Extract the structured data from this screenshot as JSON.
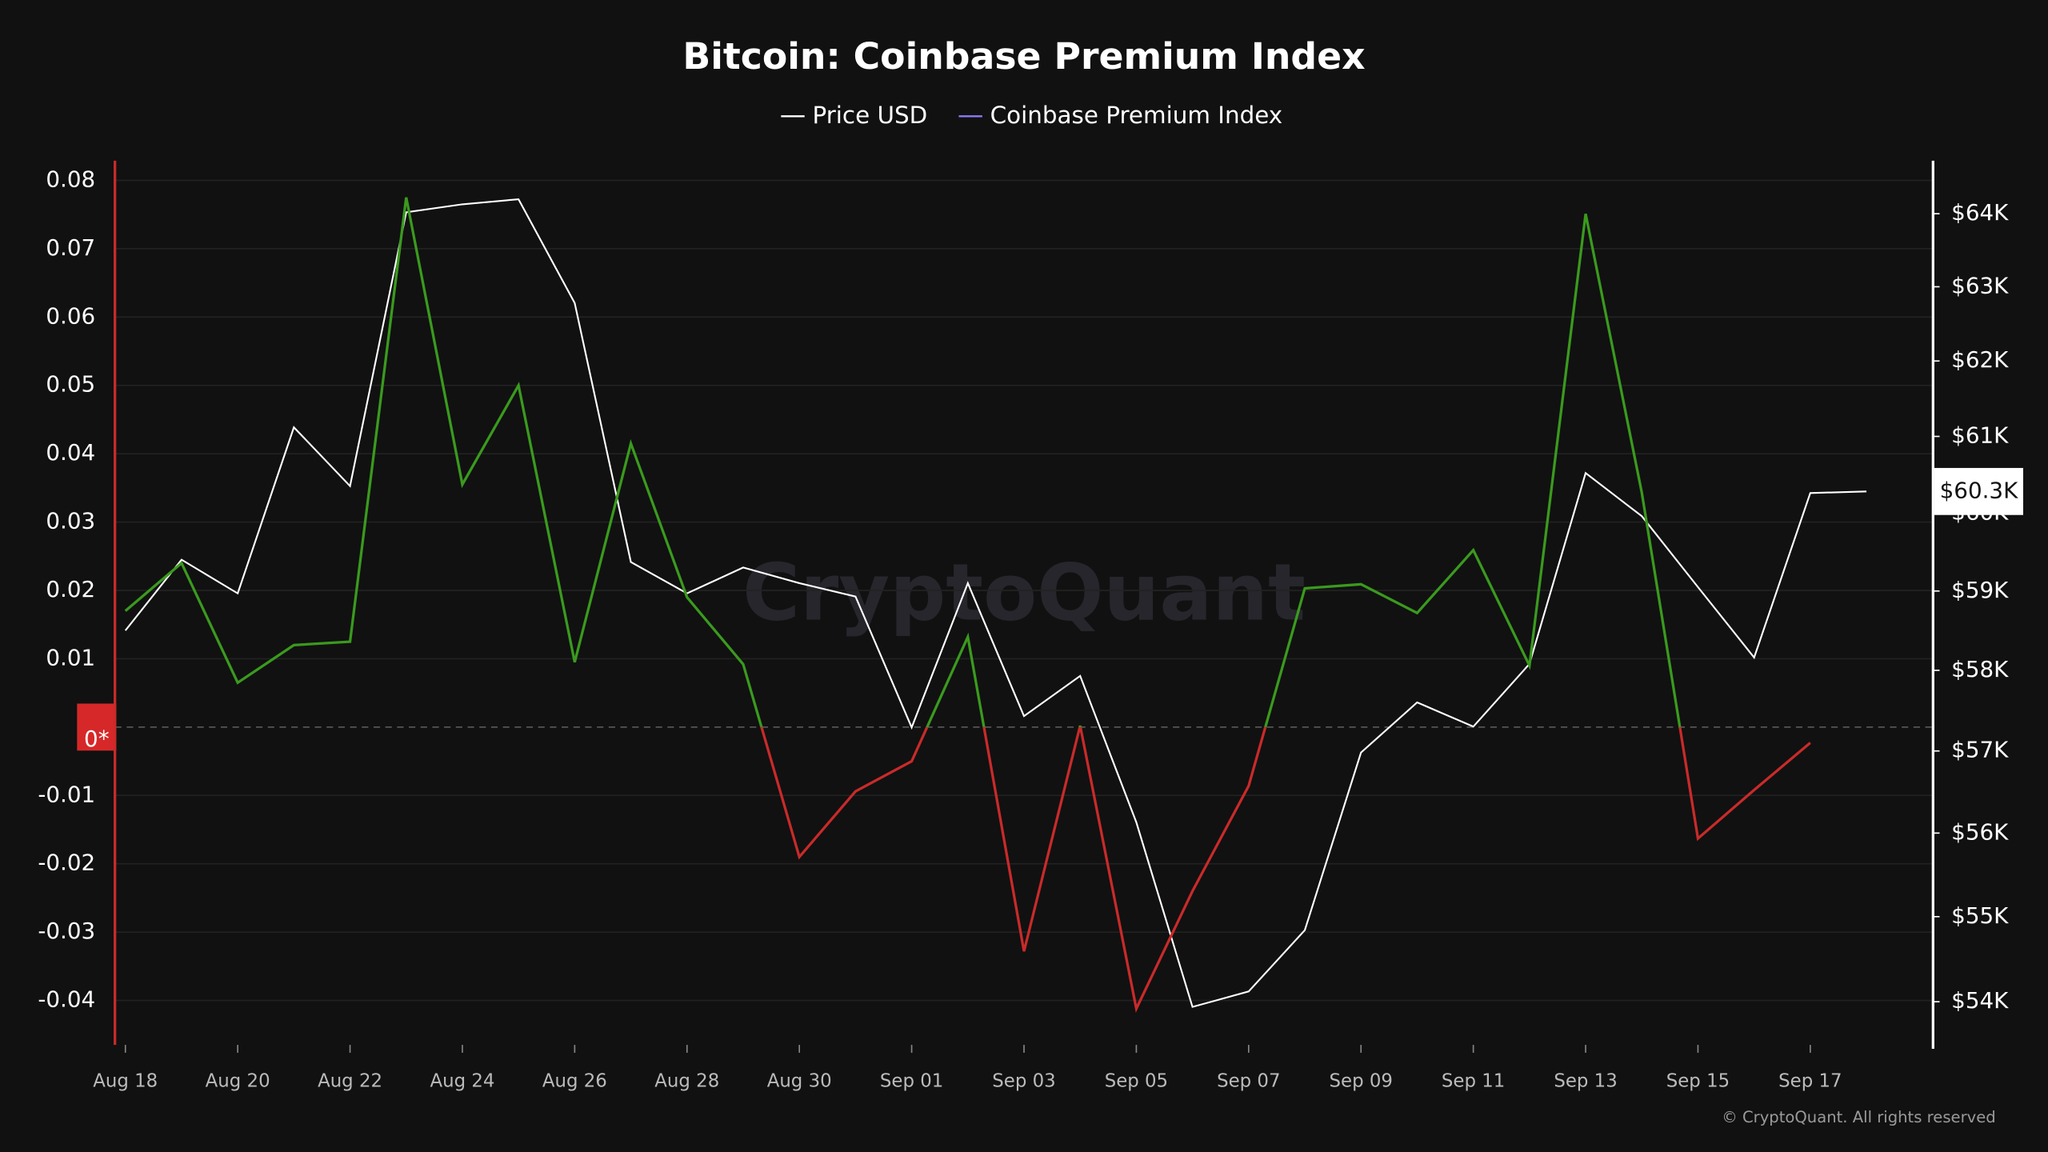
{
  "chart_data": {
    "type": "line",
    "title": "Bitcoin: Coinbase Premium Index",
    "watermark": "CryptoQuant",
    "copyright": "© CryptoQuant. All rights reserved",
    "categories": [
      "Aug 18",
      null,
      "Aug 20",
      null,
      "Aug 22",
      null,
      "Aug 24",
      null,
      "Aug 26",
      null,
      "Aug 28",
      null,
      "Aug 30",
      null,
      "Sep 01",
      null,
      "Sep 03",
      null,
      "Sep 05",
      null,
      "Sep 07",
      null,
      "Sep 09",
      null,
      "Sep 11",
      null,
      "Sep 13",
      null,
      "Sep 15",
      null,
      "Sep 17",
      null
    ],
    "series": [
      {
        "name": "Price USD",
        "color": "#ffffff",
        "axis": "y2",
        "values": [
          58500,
          59400,
          58970,
          61120,
          60350,
          64020,
          64130,
          64200,
          62780,
          59370,
          58970,
          59300,
          59100,
          58930,
          57290,
          59100,
          57430,
          57930,
          56130,
          53940,
          54120,
          54840,
          56980,
          57600,
          57300,
          58080,
          60520,
          59960,
          59050,
          58160,
          60260,
          60280
        ],
        "last_label": "$60.3K"
      },
      {
        "name": "Coinbase Premium Index",
        "color": "#8b7cf8",
        "positive_color": "#3a9a1e",
        "negative_color": "#c92a2a",
        "values": [
          0.017,
          0.024,
          0.0065,
          0.012,
          0.0125,
          0.0775,
          0.0355,
          0.05,
          0.0095,
          0.0415,
          0.019,
          0.0092,
          -0.019,
          -0.0094,
          -0.005,
          0.0132,
          -0.0328,
          0.0002,
          -0.0412,
          -0.024,
          -0.0086,
          0.0203,
          0.0209,
          0.0167,
          0.0259,
          0.009,
          0.0751,
          0.0343,
          -0.0163,
          -0.0092,
          -0.0023,
          null
        ]
      }
    ],
    "ylim": [
      -0.0465,
      0.0825
    ],
    "yticks": [
      0.08,
      0.07,
      0.06,
      0.05,
      0.04,
      0.03,
      0.02,
      0.01,
      {
        "value": 0,
        "label": "0*"
      },
      -0.01,
      -0.02,
      -0.03,
      -0.04
    ],
    "y2lim": [
      53500,
      64700
    ],
    "y2log": true,
    "y2ticks": [
      {
        "value": 54000,
        "label": "$54K"
      },
      {
        "value": 55000,
        "label": "$55K"
      },
      {
        "value": 56000,
        "label": "$56K"
      },
      {
        "value": 57000,
        "label": "$57K"
      },
      {
        "value": 58000,
        "label": "$58K"
      },
      {
        "value": 59000,
        "label": "$59K"
      },
      {
        "value": 60000,
        "label": "$60K"
      },
      {
        "value": 61000,
        "label": "$61K"
      },
      {
        "value": 62000,
        "label": "$62K"
      },
      {
        "value": 63000,
        "label": "$63K"
      },
      {
        "value": 64000,
        "label": "$64K"
      }
    ],
    "grid": true,
    "legend": "top"
  }
}
